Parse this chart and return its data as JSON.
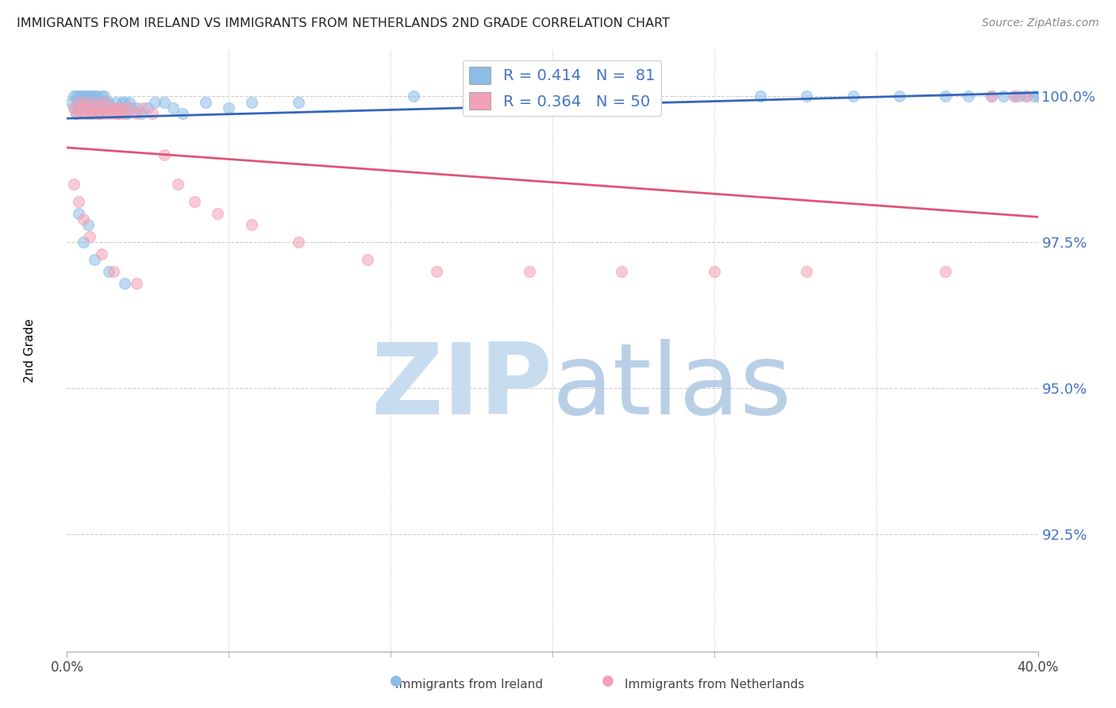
{
  "title": "IMMIGRANTS FROM IRELAND VS IMMIGRANTS FROM NETHERLANDS 2ND GRADE CORRELATION CHART",
  "source": "Source: ZipAtlas.com",
  "ylabel": "2nd Grade",
  "ytick_vals": [
    1.0,
    0.975,
    0.95,
    0.925
  ],
  "ytick_labels": [
    "100.0%",
    "97.5%",
    "95.0%",
    "92.5%"
  ],
  "ylim": [
    0.905,
    1.008
  ],
  "xlim": [
    0.0,
    0.42
  ],
  "xtick_labels": [
    "0.0%",
    "40.0%"
  ],
  "legend_blue_label": "R = 0.414   N =  81",
  "legend_pink_label": "R = 0.364   N = 50",
  "blue_color": "#8BBDE8",
  "pink_color": "#F4A0B5",
  "blue_line_color": "#3366BB",
  "pink_line_color": "#DD5577",
  "ytick_color": "#4472C4",
  "grid_color": "#cccccc",
  "title_color": "#222222",
  "source_color": "#888888",
  "watermark_zip_color": "#C8DCF0",
  "watermark_atlas_color": "#A8C4E0",
  "blue_scatter_x": [
    0.002,
    0.003,
    0.003,
    0.004,
    0.004,
    0.005,
    0.005,
    0.005,
    0.006,
    0.006,
    0.006,
    0.007,
    0.007,
    0.007,
    0.008,
    0.008,
    0.008,
    0.009,
    0.009,
    0.009,
    0.01,
    0.01,
    0.01,
    0.011,
    0.011,
    0.011,
    0.012,
    0.012,
    0.013,
    0.013,
    0.014,
    0.014,
    0.015,
    0.015,
    0.016,
    0.016,
    0.017,
    0.018,
    0.019,
    0.02,
    0.021,
    0.022,
    0.023,
    0.024,
    0.025,
    0.026,
    0.027,
    0.028,
    0.03,
    0.032,
    0.035,
    0.038,
    0.042,
    0.046,
    0.05,
    0.06,
    0.07,
    0.08,
    0.1,
    0.15,
    0.2,
    0.25,
    0.3,
    0.32,
    0.34,
    0.36,
    0.38,
    0.39,
    0.4,
    0.405,
    0.41,
    0.412,
    0.415,
    0.418,
    0.42,
    0.005,
    0.007,
    0.009,
    0.012,
    0.018,
    0.025
  ],
  "blue_scatter_y": [
    0.999,
    0.998,
    1.0,
    0.997,
    1.0,
    0.998,
    1.0,
    0.999,
    0.998,
    1.0,
    0.999,
    0.999,
    1.0,
    0.998,
    0.999,
    1.0,
    0.997,
    0.999,
    1.0,
    0.998,
    0.999,
    1.0,
    0.998,
    0.999,
    1.0,
    0.997,
    0.999,
    1.0,
    0.998,
    1.0,
    0.999,
    0.997,
    0.999,
    1.0,
    0.998,
    1.0,
    0.999,
    0.999,
    0.998,
    0.998,
    0.999,
    0.997,
    0.998,
    0.999,
    0.999,
    0.997,
    0.999,
    0.998,
    0.998,
    0.997,
    0.998,
    0.999,
    0.999,
    0.998,
    0.997,
    0.999,
    0.998,
    0.999,
    0.999,
    1.0,
    1.0,
    1.0,
    1.0,
    1.0,
    1.0,
    1.0,
    1.0,
    1.0,
    1.0,
    1.0,
    1.0,
    1.0,
    1.0,
    1.0,
    1.0,
    0.98,
    0.975,
    0.978,
    0.972,
    0.97,
    0.968
  ],
  "pink_scatter_x": [
    0.003,
    0.004,
    0.005,
    0.006,
    0.007,
    0.008,
    0.009,
    0.01,
    0.011,
    0.012,
    0.013,
    0.014,
    0.015,
    0.016,
    0.017,
    0.018,
    0.019,
    0.02,
    0.021,
    0.022,
    0.023,
    0.024,
    0.025,
    0.027,
    0.03,
    0.033,
    0.037,
    0.042,
    0.048,
    0.055,
    0.065,
    0.08,
    0.1,
    0.13,
    0.16,
    0.2,
    0.24,
    0.28,
    0.32,
    0.38,
    0.4,
    0.41,
    0.415,
    0.003,
    0.005,
    0.007,
    0.01,
    0.015,
    0.02,
    0.03
  ],
  "pink_scatter_y": [
    0.998,
    0.997,
    0.999,
    0.997,
    0.998,
    0.999,
    0.997,
    0.998,
    0.997,
    0.999,
    0.997,
    0.998,
    0.997,
    0.999,
    0.997,
    0.998,
    0.997,
    0.998,
    0.997,
    0.998,
    0.997,
    0.998,
    0.997,
    0.998,
    0.997,
    0.998,
    0.997,
    0.99,
    0.985,
    0.982,
    0.98,
    0.978,
    0.975,
    0.972,
    0.97,
    0.97,
    0.97,
    0.97,
    0.97,
    0.97,
    1.0,
    1.0,
    1.0,
    0.985,
    0.982,
    0.979,
    0.976,
    0.973,
    0.97,
    0.968
  ]
}
